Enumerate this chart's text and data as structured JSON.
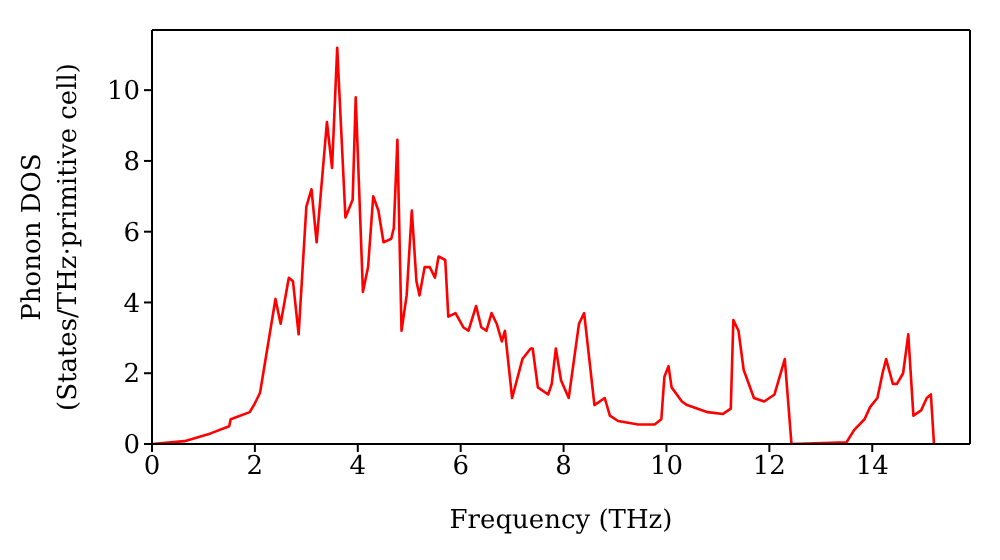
{
  "chart_data": {
    "type": "line",
    "xlabel": "Frequency (THz)",
    "ylabel": "Phonon DOS\n(States/THz·primitive cell)",
    "xlim": [
      0,
      15.9
    ],
    "ylim": [
      0,
      11.7
    ],
    "xticks": [
      0,
      2,
      4,
      6,
      8,
      10,
      12,
      14
    ],
    "yticks": [
      0,
      2,
      4,
      6,
      8,
      10
    ],
    "marker": "none",
    "line_style": "solid",
    "series": [
      {
        "color": "#ff0000",
        "x": [
          0,
          0.63,
          1.14,
          1.5,
          1.53,
          1.9,
          2.0,
          2.1,
          2.4,
          2.5,
          2.66,
          2.74,
          2.85,
          3.0,
          3.1,
          3.2,
          3.4,
          3.5,
          3.6,
          3.76,
          3.9,
          3.96,
          4.1,
          4.2,
          4.3,
          4.4,
          4.5,
          4.65,
          4.7,
          4.77,
          4.85,
          4.95,
          5.05,
          5.14,
          5.2,
          5.3,
          5.4,
          5.5,
          5.57,
          5.7,
          5.76,
          5.9,
          6.05,
          6.15,
          6.3,
          6.4,
          6.5,
          6.6,
          6.7,
          6.8,
          6.86,
          7.0,
          7.2,
          7.36,
          7.4,
          7.5,
          7.7,
          7.77,
          7.85,
          7.95,
          8.1,
          8.3,
          8.4,
          8.6,
          8.8,
          8.9,
          9.06,
          9.45,
          9.77,
          9.9,
          9.96,
          10.04,
          10.1,
          10.3,
          10.4,
          10.8,
          11.1,
          11.25,
          11.3,
          11.4,
          11.5,
          11.7,
          11.9,
          12.1,
          12.3,
          12.43,
          13.5,
          13.65,
          13.85,
          13.96,
          14.1,
          14.2,
          14.27,
          14.4,
          14.48,
          14.6,
          14.7,
          14.8,
          14.95,
          15.06,
          15.14,
          15.2
        ],
        "values": [
          0,
          0.08,
          0.3,
          0.5,
          0.7,
          0.9,
          1.15,
          1.45,
          4.1,
          3.4,
          4.7,
          4.6,
          3.1,
          6.7,
          7.2,
          5.7,
          9.1,
          7.8,
          11.2,
          6.4,
          6.9,
          9.8,
          4.3,
          5.0,
          7.0,
          6.6,
          5.7,
          5.8,
          6.1,
          8.6,
          3.2,
          4.2,
          6.6,
          4.6,
          4.2,
          5.0,
          5.0,
          4.7,
          5.3,
          5.2,
          3.6,
          3.7,
          3.3,
          3.2,
          3.9,
          3.3,
          3.2,
          3.7,
          3.4,
          2.9,
          3.2,
          1.3,
          2.4,
          2.7,
          2.7,
          1.6,
          1.4,
          1.7,
          2.7,
          1.8,
          1.3,
          3.4,
          3.7,
          1.1,
          1.3,
          0.8,
          0.65,
          0.55,
          0.55,
          0.7,
          1.9,
          2.2,
          1.6,
          1.2,
          1.1,
          0.9,
          0.85,
          1.0,
          3.5,
          3.2,
          2.1,
          1.3,
          1.2,
          1.4,
          2.4,
          0,
          0.05,
          0.4,
          0.7,
          1.05,
          1.3,
          2.0,
          2.4,
          1.7,
          1.7,
          2.0,
          3.1,
          0.8,
          0.95,
          1.3,
          1.4,
          0
        ]
      }
    ]
  }
}
